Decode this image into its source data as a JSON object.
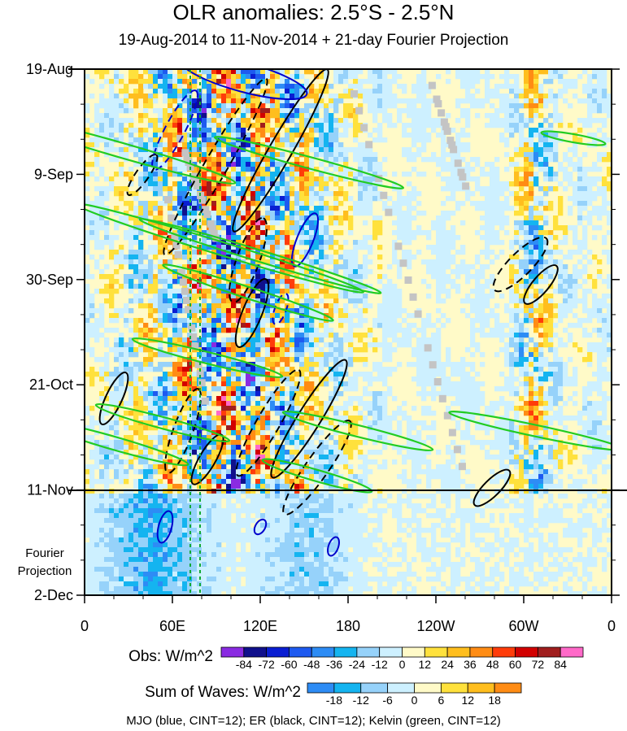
{
  "chart_data": {
    "type": "heatmap",
    "title": "OLR anomalies: 2.5°S - 2.5°N",
    "subtitle": "19-Aug-2014 to 11-Nov-2014 + 21-day Fourier Projection",
    "x_axis": {
      "ticks": [
        "0",
        "60E",
        "120E",
        "180",
        "120W",
        "60W",
        "0"
      ],
      "range": [
        0,
        360
      ]
    },
    "y_axis": {
      "ticks": [
        "19-Aug",
        "9-Sep",
        "30-Sep",
        "21-Oct",
        "11-Nov",
        "2-Dec"
      ],
      "range": [
        "19-Aug-2014",
        "2-Dec-2014"
      ]
    },
    "observation_end": "11-Nov",
    "projection_label": [
      "Fourier",
      "Projection"
    ],
    "colorbar_obs": {
      "title": "Obs: W/m^2",
      "levels": [
        "-84",
        "-72",
        "-60",
        "-48",
        "-36",
        "-24",
        "-12",
        "0",
        "12",
        "24",
        "36",
        "48",
        "60",
        "72",
        "84"
      ],
      "colors": [
        "#8a2be2",
        "#10108c",
        "#0a1ed2",
        "#1e5af0",
        "#2d8cf5",
        "#14b4f0",
        "#96d2fa",
        "#cdf0ff",
        "#fffac8",
        "#ffe13c",
        "#ffbe1e",
        "#ff8c14",
        "#ff3c0a",
        "#d20000",
        "#a01e1e",
        "#ff69c8"
      ]
    },
    "colorbar_waves": {
      "title": "Sum of Waves: W/m^2",
      "levels": [
        "-18",
        "-12",
        "-6",
        "0",
        "6",
        "12",
        "18"
      ],
      "colors": [
        "#2d8cf5",
        "#14b4f0",
        "#96d2fa",
        "#cdf0ff",
        "#fffac8",
        "#ffe13c",
        "#ffbe1e",
        "#ff8c14"
      ]
    },
    "contours_legend": "MJO (blue, CINT=12); ER (black, CINT=12); Kelvin (green, CINT=12)",
    "contour_colors": {
      "MJO": "#0000cc",
      "ER": "#000000",
      "Kelvin": "#22cc22"
    }
  }
}
